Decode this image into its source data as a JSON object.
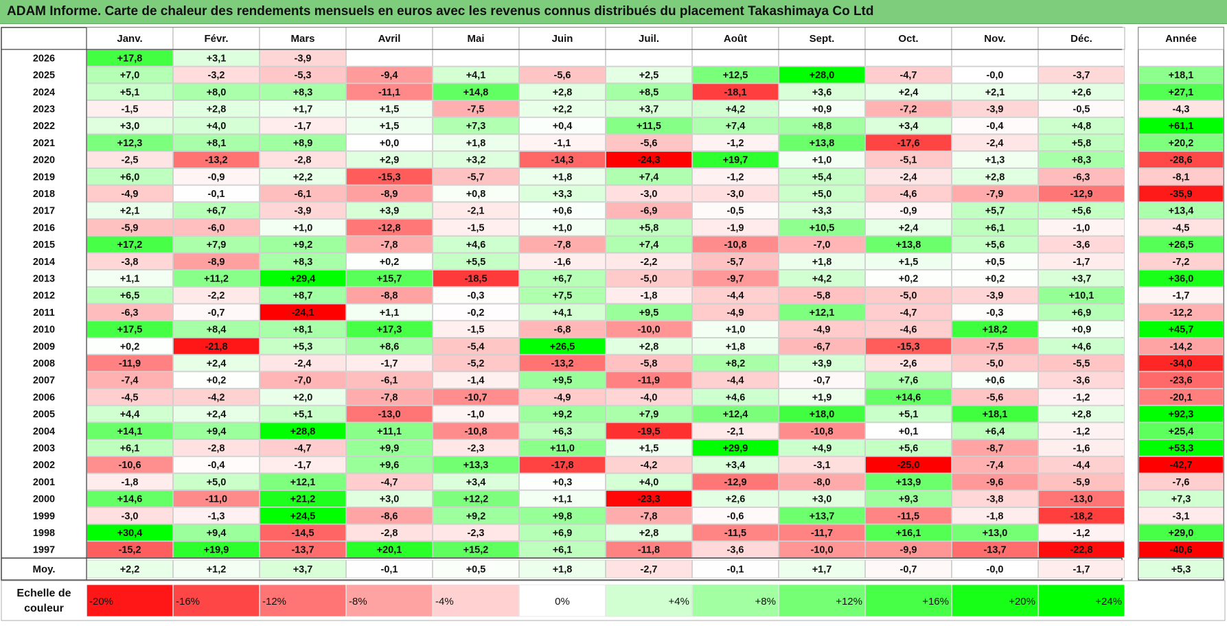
{
  "title": "ADAM Informe. Carte de chaleur des rendements mensuels en euros avec les revenus connus distribués du placement Takashimaya Co Ltd",
  "chart_data": {
    "type": "heatmap",
    "title": "ADAM Informe. Carte de chaleur des rendements mensuels en euros avec les revenus connus distribués du placement Takashimaya Co Ltd",
    "months": [
      "Janv.",
      "Févr.",
      "Mars",
      "Avril",
      "Mai",
      "Juin",
      "Juil.",
      "Août",
      "Sept.",
      "Oct.",
      "Nov.",
      "Déc."
    ],
    "year_column_label": "Année",
    "average_label": "Moy.",
    "rows": [
      {
        "year": "2026",
        "values": [
          "+17,8",
          "+3,1",
          "-3,9",
          "",
          "",
          "",
          "",
          "",
          "",
          "",
          "",
          ""
        ],
        "annual": ""
      },
      {
        "year": "2025",
        "values": [
          "+7,0",
          "-3,2",
          "-5,3",
          "-9,4",
          "+4,1",
          "-5,6",
          "+2,5",
          "+12,5",
          "+28,0",
          "-4,7",
          "-0,0",
          "-3,7"
        ],
        "annual": "+18,1"
      },
      {
        "year": "2024",
        "values": [
          "+5,1",
          "+8,0",
          "+8,3",
          "-11,1",
          "+14,8",
          "+2,8",
          "+8,5",
          "-18,1",
          "+3,6",
          "+2,4",
          "+2,1",
          "+2,6"
        ],
        "annual": "+27,1"
      },
      {
        "year": "2023",
        "values": [
          "-1,5",
          "+2,8",
          "+1,7",
          "+1,5",
          "-7,5",
          "+2,2",
          "+3,7",
          "+4,2",
          "+0,9",
          "-7,2",
          "-3,9",
          "-0,5"
        ],
        "annual": "-4,3"
      },
      {
        "year": "2022",
        "values": [
          "+3,0",
          "+4,0",
          "-1,7",
          "+1,5",
          "+7,3",
          "+0,4",
          "+11,5",
          "+7,4",
          "+8,8",
          "+3,4",
          "-0,4",
          "+4,8"
        ],
        "annual": "+61,1"
      },
      {
        "year": "2021",
        "values": [
          "+12,3",
          "+8,1",
          "+8,9",
          "+0,0",
          "+1,8",
          "-1,1",
          "-5,6",
          "-1,2",
          "+13,8",
          "-17,6",
          "-2,4",
          "+5,8"
        ],
        "annual": "+20,2"
      },
      {
        "year": "2020",
        "values": [
          "-2,5",
          "-13,2",
          "-2,8",
          "+2,9",
          "+3,2",
          "-14,3",
          "-24,3",
          "+19,7",
          "+1,0",
          "-5,1",
          "+1,3",
          "+8,3"
        ],
        "annual": "-28,6"
      },
      {
        "year": "2019",
        "values": [
          "+6,0",
          "-0,9",
          "+2,2",
          "-15,3",
          "-5,7",
          "+1,8",
          "+7,4",
          "-1,2",
          "+5,4",
          "-2,4",
          "+2,8",
          "-6,3"
        ],
        "annual": "-8,1"
      },
      {
        "year": "2018",
        "values": [
          "-4,9",
          "-0,1",
          "-6,1",
          "-8,9",
          "+0,8",
          "+3,3",
          "-3,0",
          "-3,0",
          "+5,0",
          "-4,6",
          "-7,9",
          "-12,9"
        ],
        "annual": "-35,9"
      },
      {
        "year": "2017",
        "values": [
          "+2,1",
          "+6,7",
          "-3,9",
          "+3,9",
          "-2,1",
          "+0,6",
          "-6,9",
          "-0,5",
          "+3,3",
          "-0,9",
          "+5,7",
          "+5,6"
        ],
        "annual": "+13,4"
      },
      {
        "year": "2016",
        "values": [
          "-5,9",
          "-6,0",
          "+1,0",
          "-12,8",
          "-1,5",
          "+1,0",
          "+5,8",
          "-1,9",
          "+10,5",
          "+2,4",
          "+6,1",
          "-1,0"
        ],
        "annual": "-4,5"
      },
      {
        "year": "2015",
        "values": [
          "+17,2",
          "+7,9",
          "+9,2",
          "-7,8",
          "+4,6",
          "-7,8",
          "+7,4",
          "-10,8",
          "-7,0",
          "+13,8",
          "+5,6",
          "-3,6"
        ],
        "annual": "+26,5"
      },
      {
        "year": "2014",
        "values": [
          "-3,8",
          "-8,9",
          "+8,3",
          "+0,2",
          "+5,5",
          "-1,6",
          "-2,2",
          "-5,7",
          "+1,8",
          "+1,5",
          "+0,5",
          "-1,7"
        ],
        "annual": "-7,2"
      },
      {
        "year": "2013",
        "values": [
          "+1,1",
          "+11,2",
          "+29,4",
          "+15,7",
          "-18,5",
          "+6,7",
          "-5,0",
          "-9,7",
          "+4,2",
          "+0,2",
          "+0,2",
          "+3,7"
        ],
        "annual": "+36,0"
      },
      {
        "year": "2012",
        "values": [
          "+6,5",
          "-2,2",
          "+8,7",
          "-8,8",
          "-0,3",
          "+7,5",
          "-1,8",
          "-4,4",
          "-5,8",
          "-5,0",
          "-3,9",
          "+10,1"
        ],
        "annual": "-1,7"
      },
      {
        "year": "2011",
        "values": [
          "-6,3",
          "-0,7",
          "-24,1",
          "+1,1",
          "-0,2",
          "+4,1",
          "+9,5",
          "-4,9",
          "+12,1",
          "-4,7",
          "-0,3",
          "+6,9"
        ],
        "annual": "-12,2"
      },
      {
        "year": "2010",
        "values": [
          "+17,5",
          "+8,4",
          "+8,1",
          "+17,3",
          "-1,5",
          "-6,8",
          "-10,0",
          "+1,0",
          "-4,9",
          "-4,6",
          "+18,2",
          "+0,9"
        ],
        "annual": "+45,7"
      },
      {
        "year": "2009",
        "values": [
          "+0,2",
          "-21,8",
          "+5,3",
          "+8,6",
          "-5,4",
          "+26,5",
          "+2,8",
          "+1,8",
          "-6,7",
          "-15,3",
          "-7,5",
          "+4,6"
        ],
        "annual": "-14,2"
      },
      {
        "year": "2008",
        "values": [
          "-11,9",
          "+2,4",
          "-2,4",
          "-1,7",
          "-5,2",
          "-13,2",
          "-5,8",
          "+8,2",
          "+3,9",
          "-2,6",
          "-5,0",
          "-5,5"
        ],
        "annual": "-34,0"
      },
      {
        "year": "2007",
        "values": [
          "-7,4",
          "+0,2",
          "-7,0",
          "-6,1",
          "-1,4",
          "+9,5",
          "-11,9",
          "-4,4",
          "-0,7",
          "+7,6",
          "+0,6",
          "-3,6"
        ],
        "annual": "-23,6"
      },
      {
        "year": "2006",
        "values": [
          "-4,5",
          "-4,2",
          "+2,0",
          "-7,8",
          "-10,7",
          "-4,9",
          "-4,0",
          "+4,6",
          "+1,9",
          "+14,6",
          "-5,6",
          "-1,2"
        ],
        "annual": "-20,1"
      },
      {
        "year": "2005",
        "values": [
          "+4,4",
          "+2,4",
          "+5,1",
          "-13,0",
          "-1,0",
          "+9,2",
          "+7,9",
          "+12,4",
          "+18,0",
          "+5,1",
          "+18,1",
          "+2,8"
        ],
        "annual": "+92,3"
      },
      {
        "year": "2004",
        "values": [
          "+14,1",
          "+9,4",
          "+28,8",
          "+11,1",
          "-10,8",
          "+6,3",
          "-19,5",
          "-2,1",
          "-10,8",
          "+0,1",
          "+6,4",
          "-1,2"
        ],
        "annual": "+25,4"
      },
      {
        "year": "2003",
        "values": [
          "+6,1",
          "-2,8",
          "-4,7",
          "+9,9",
          "-2,3",
          "+11,0",
          "+1,5",
          "+29,9",
          "+4,9",
          "+5,6",
          "-8,7",
          "-1,6"
        ],
        "annual": "+53,3"
      },
      {
        "year": "2002",
        "values": [
          "-10,6",
          "-0,4",
          "-1,7",
          "+9,6",
          "+13,3",
          "-17,8",
          "-4,2",
          "+3,4",
          "-3,1",
          "-25,0",
          "-7,4",
          "-4,4"
        ],
        "annual": "-42,7"
      },
      {
        "year": "2001",
        "values": [
          "-1,8",
          "+5,0",
          "+12,1",
          "-4,7",
          "+3,4",
          "+0,3",
          "+4,0",
          "-12,9",
          "-8,0",
          "+13,9",
          "-9,6",
          "-5,9"
        ],
        "annual": "-7,6"
      },
      {
        "year": "2000",
        "values": [
          "+14,6",
          "-11,0",
          "+21,2",
          "+3,0",
          "+12,2",
          "+1,1",
          "-23,3",
          "+2,6",
          "+3,0",
          "+9,3",
          "-3,8",
          "-13,0"
        ],
        "annual": "+7,3"
      },
      {
        "year": "1999",
        "values": [
          "-3,0",
          "-1,3",
          "+24,5",
          "-8,6",
          "+9,2",
          "+9,8",
          "-7,8",
          "-0,6",
          "+13,7",
          "-11,5",
          "-1,8",
          "-18,2"
        ],
        "annual": "-3,1"
      },
      {
        "year": "1998",
        "values": [
          "+30,4",
          "+9,4",
          "-14,5",
          "-2,8",
          "-2,3",
          "+6,9",
          "+2,8",
          "-11,5",
          "-11,7",
          "+16,1",
          "+13,0",
          "-1,2"
        ],
        "annual": "+29,0"
      },
      {
        "year": "1997",
        "values": [
          "-15,2",
          "+19,9",
          "-13,7",
          "+20,1",
          "+15,2",
          "+6,1",
          "-11,8",
          "-3,6",
          "-10,0",
          "-9,9",
          "-13,7",
          "-22,8"
        ],
        "annual": "-40,6"
      }
    ],
    "averages": [
      "+2,2",
      "+1,2",
      "+3,7",
      "-0,1",
      "+0,5",
      "+1,8",
      "-2,7",
      "-0,1",
      "+1,7",
      "-0,7",
      "-0,0",
      "-1,7"
    ],
    "average_annual": "+5,3",
    "color_scale": {
      "label": "Echelle de couleur",
      "stops": [
        "-20%",
        "-16%",
        "-12%",
        "-8%",
        "-4%",
        "0%",
        "+4%",
        "+8%",
        "+12%",
        "+16%",
        "+20%",
        "+24%"
      ]
    },
    "colors": {
      "negative_max": "#ff0000",
      "positive_max": "#00ff00",
      "neutral": "#ffffff",
      "title_bar": "#7dcd7d"
    }
  }
}
